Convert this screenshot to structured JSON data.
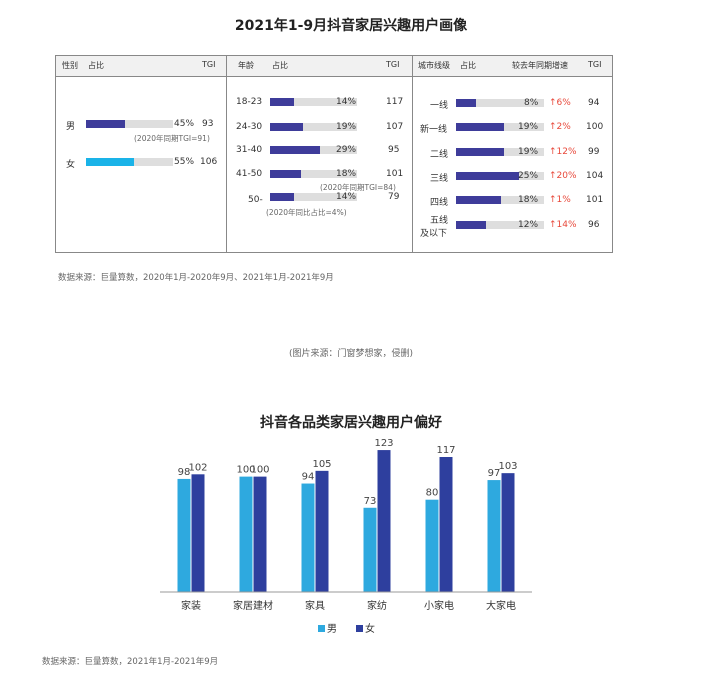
{
  "top": {
    "title": "2021年1-9月抖音家居兴趣用户画像",
    "gender": {
      "headers": [
        "性别",
        "占比",
        "TGI"
      ],
      "rows": [
        {
          "label": "男",
          "pct_text": "45%",
          "value": 45,
          "tgi": "93",
          "color": "#3e3c9a"
        },
        {
          "label": "女",
          "pct_text": "55%",
          "value": 55,
          "tgi": "106",
          "color": "#1ab3e8"
        }
      ],
      "note": "(2020年同期TGI=91)"
    },
    "age": {
      "headers": [
        "年龄",
        "占比",
        "TGI"
      ],
      "rows": [
        {
          "label": "18-23",
          "pct_text": "14%",
          "value": 14,
          "tgi": "117"
        },
        {
          "label": "24-30",
          "pct_text": "19%",
          "value": 19,
          "tgi": "107"
        },
        {
          "label": "31-40",
          "pct_text": "29%",
          "value": 29,
          "tgi": "95"
        },
        {
          "label": "41-50",
          "pct_text": "18%",
          "value": 18,
          "tgi": "101"
        },
        {
          "label": "50-",
          "pct_text": "14%",
          "value": 14,
          "tgi": "79"
        }
      ],
      "note1": "(2020年同期TGI=84)",
      "note2": "(2020年同比占比=4%)"
    },
    "city": {
      "headers": [
        "城市线级",
        "占比",
        "较去年同期增速",
        "TGI"
      ],
      "rows": [
        {
          "label": "一线",
          "pct_text": "8%",
          "value": 8,
          "growth": "6%",
          "tgi": "94"
        },
        {
          "label": "新一线",
          "pct_text": "19%",
          "value": 19,
          "growth": "2%",
          "tgi": "100"
        },
        {
          "label": "二线",
          "pct_text": "19%",
          "value": 19,
          "growth": "12%",
          "tgi": "99"
        },
        {
          "label": "三线",
          "pct_text": "25%",
          "value": 25,
          "growth": "20%",
          "tgi": "104"
        },
        {
          "label": "四线",
          "pct_text": "18%",
          "value": 18,
          "growth": "1%",
          "tgi": "101"
        },
        {
          "label": "五线及以下",
          "label_line1": "五线",
          "label_line2": "及以下",
          "pct_text": "12%",
          "value": 12,
          "growth": "14%",
          "tgi": "96"
        }
      ],
      "growth_arrow": "↑"
    },
    "source": "数据来源：巨量算数，2020年1月-2020年9月、2021年1月-2021年9月",
    "caption": "(图片来源：门窗梦想家，侵删)"
  },
  "chart_data": {
    "type": "bar",
    "title": "抖音各品类家居兴趣用户偏好",
    "categories": [
      "家装",
      "家居建材",
      "家具",
      "家纺",
      "小家电",
      "大家电"
    ],
    "series": [
      {
        "name": "男",
        "values": [
          98,
          100,
          94,
          73,
          80,
          97
        ],
        "color": "#2ea9df"
      },
      {
        "name": "女",
        "values": [
          102,
          100,
          105,
          123,
          117,
          103
        ],
        "color": "#2e3f9e"
      }
    ],
    "ylim": [
      0,
      130
    ],
    "grid": false,
    "legend": "bottom-center"
  },
  "bottom": {
    "source": "数据来源：巨量算数，2021年1月-2021年9月"
  }
}
